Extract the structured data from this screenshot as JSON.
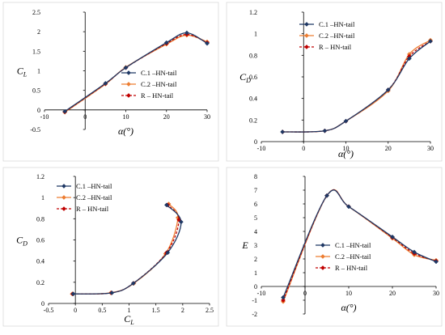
{
  "chart_data": [
    {
      "type": "line",
      "xlabel": "α(°)",
      "ylabel": "CL",
      "xlim": [
        -10,
        30
      ],
      "ylim": [
        -0.5,
        2.5
      ],
      "xticks": [
        -10,
        0,
        10,
        20,
        30
      ],
      "yticks": [
        -0.5,
        0,
        0.5,
        1,
        1.5,
        2,
        2.5
      ],
      "xticklabels": [
        "-10",
        "0",
        "10",
        "20",
        "30"
      ],
      "yticklabels": [
        "-0.5",
        "0",
        "0.5",
        "1",
        "1.5",
        "2",
        "2.5"
      ],
      "legend_position": "right",
      "series": [
        {
          "name": "C.1 –HN-tail",
          "color": "#1f3864",
          "marker": "diamond",
          "dash": false,
          "x": [
            -5,
            5,
            10,
            20,
            25,
            30
          ],
          "y": [
            -0.04,
            0.68,
            1.08,
            1.72,
            1.97,
            1.7
          ]
        },
        {
          "name": "C.2 –HN-tail",
          "color": "#ed7d31",
          "marker": "diamond",
          "dash": false,
          "x": [
            -5,
            5,
            10,
            20,
            25,
            30
          ],
          "y": [
            -0.06,
            0.66,
            1.09,
            1.68,
            1.91,
            1.74
          ]
        },
        {
          "name": "R – HN-tail",
          "color": "#c00000",
          "marker": "diamond",
          "dash": true,
          "x": [
            -5,
            5,
            10,
            20,
            25,
            30
          ],
          "y": [
            -0.05,
            0.67,
            1.08,
            1.7,
            1.93,
            1.72
          ]
        }
      ]
    },
    {
      "type": "line",
      "xlabel": "α(°)",
      "ylabel": "CD",
      "xlim": [
        -10,
        30
      ],
      "ylim": [
        0,
        1.2
      ],
      "xticks": [
        -10,
        0,
        10,
        20,
        30
      ],
      "yticks": [
        0,
        0.2,
        0.4,
        0.6,
        0.8,
        1,
        1.2
      ],
      "xticklabels": [
        "-10",
        "0",
        "10",
        "20",
        "30"
      ],
      "yticklabels": [
        "0",
        "0.2",
        "0.4",
        "0.6",
        "0.8",
        "1",
        "1.2"
      ],
      "legend_position": "top-left",
      "series": [
        {
          "name": "C.1 –HN-tail",
          "color": "#1f3864",
          "marker": "diamond",
          "dash": false,
          "x": [
            -5,
            5,
            10,
            20,
            25,
            30
          ],
          "y": [
            0.09,
            0.1,
            0.19,
            0.48,
            0.77,
            0.93
          ]
        },
        {
          "name": "C.2 –HN-tail",
          "color": "#ed7d31",
          "marker": "diamond",
          "dash": false,
          "x": [
            -5,
            5,
            10,
            20,
            25,
            30
          ],
          "y": [
            0.09,
            0.1,
            0.19,
            0.47,
            0.81,
            0.94
          ]
        },
        {
          "name": "R – HN-tail",
          "color": "#c00000",
          "marker": "diamond",
          "dash": true,
          "x": [
            -5,
            5,
            10,
            20,
            25,
            30
          ],
          "y": [
            0.09,
            0.1,
            0.19,
            0.48,
            0.79,
            0.93
          ]
        }
      ]
    },
    {
      "type": "line",
      "xlabel": "CL",
      "ylabel": "CD",
      "xlim": [
        -0.5,
        2.5
      ],
      "ylim": [
        0,
        1.2
      ],
      "xticks": [
        -0.5,
        0,
        0.5,
        1,
        1.5,
        2,
        2.5
      ],
      "yticks": [
        0,
        0.2,
        0.4,
        0.6,
        0.8,
        1,
        1.2
      ],
      "xticklabels": [
        "-0.5",
        "0",
        "0.5",
        "1",
        "1.5",
        "2",
        "2.5"
      ],
      "yticklabels": [
        "0",
        "0.2",
        "0.4",
        "0.6",
        "0.8",
        "1",
        "1.2"
      ],
      "legend_position": "top-left",
      "series": [
        {
          "name": "C.1 –HN-tail",
          "color": "#1f3864",
          "marker": "diamond",
          "dash": false,
          "x": [
            -0.04,
            0.68,
            1.08,
            1.72,
            1.97,
            1.7
          ],
          "y": [
            0.09,
            0.1,
            0.19,
            0.48,
            0.77,
            0.93
          ]
        },
        {
          "name": "C.2 –HN-tail",
          "color": "#ed7d31",
          "marker": "diamond",
          "dash": false,
          "x": [
            -0.06,
            0.66,
            1.09,
            1.68,
            1.91,
            1.74
          ],
          "y": [
            0.09,
            0.1,
            0.19,
            0.47,
            0.81,
            0.94
          ]
        },
        {
          "name": "R – HN-tail",
          "color": "#c00000",
          "marker": "diamond",
          "dash": true,
          "x": [
            -0.05,
            0.67,
            1.08,
            1.7,
            1.93,
            1.72
          ],
          "y": [
            0.09,
            0.1,
            0.19,
            0.48,
            0.79,
            0.93
          ]
        }
      ]
    },
    {
      "type": "line",
      "xlabel": "α(°)",
      "ylabel": "E",
      "xlim": [
        -10,
        30
      ],
      "ylim": [
        -2,
        8
      ],
      "xticks": [
        -10,
        0,
        10,
        20,
        30
      ],
      "yticks": [
        -2,
        -1,
        0,
        1,
        2,
        3,
        4,
        5,
        6,
        7,
        8
      ],
      "xticklabels": [
        "-10",
        "0",
        "10",
        "20",
        "30"
      ],
      "yticklabels": [
        "-2",
        "-1",
        "0",
        "1",
        "2",
        "3",
        "4",
        "5",
        "6",
        "7",
        "8"
      ],
      "legend_position": "bottom-right",
      "series": [
        {
          "name": "C.1 –HN-tail",
          "color": "#1f3864",
          "marker": "diamond",
          "dash": false,
          "x": [
            -5,
            5,
            10,
            20,
            25,
            30
          ],
          "y": [
            -0.8,
            6.6,
            5.8,
            3.6,
            2.5,
            1.8
          ]
        },
        {
          "name": "C.2 –HN-tail",
          "color": "#ed7d31",
          "marker": "diamond",
          "dash": false,
          "x": [
            -5,
            5,
            10,
            20,
            25,
            30
          ],
          "y": [
            -1.1,
            6.6,
            5.8,
            3.5,
            2.3,
            1.9
          ]
        },
        {
          "name": "R – HN-tail",
          "color": "#c00000",
          "marker": "diamond",
          "dash": true,
          "x": [
            -5,
            5,
            10,
            20,
            25,
            30
          ],
          "y": [
            -1.0,
            6.6,
            5.8,
            3.55,
            2.4,
            1.85
          ]
        }
      ]
    }
  ]
}
